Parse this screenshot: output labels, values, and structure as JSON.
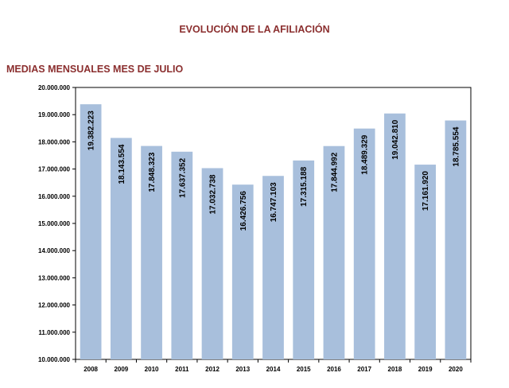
{
  "title": "EVOLUCIÓN DE LA AFILIACIÓN",
  "subtitle": "MEDIAS MENSUALES MES DE JULIO",
  "chart_data": {
    "type": "bar",
    "categories": [
      "2008",
      "2009",
      "2010",
      "2011",
      "2012",
      "2013",
      "2014",
      "2015",
      "2016",
      "2017",
      "2018",
      "2019",
      "2020"
    ],
    "values": [
      19382223,
      18143554,
      17848323,
      17637352,
      17032738,
      16426756,
      16747103,
      17315188,
      17844992,
      18489329,
      19042810,
      17161920,
      18785554
    ],
    "value_labels": [
      "19.382.223",
      "18.143.554",
      "17.848.323",
      "17.637.352",
      "17.032.738",
      "16.426.756",
      "16.747.103",
      "17.315.188",
      "17.844.992",
      "18.489.329",
      "19.042.810",
      "17.161.920",
      "18.785.554"
    ],
    "ylim": [
      10000000,
      20000000
    ],
    "yticks": [
      10000000,
      11000000,
      12000000,
      13000000,
      14000000,
      15000000,
      16000000,
      17000000,
      18000000,
      19000000,
      20000000
    ],
    "ytick_labels": [
      "10.000.000",
      "11.000.000",
      "12.000.000",
      "13.000.000",
      "14.000.000",
      "15.000.000",
      "16.000.000",
      "17.000.000",
      "18.000.000",
      "19.000.000",
      "20.000.000"
    ],
    "bar_color": "#a8bfdc",
    "grid": false,
    "legend": false
  }
}
